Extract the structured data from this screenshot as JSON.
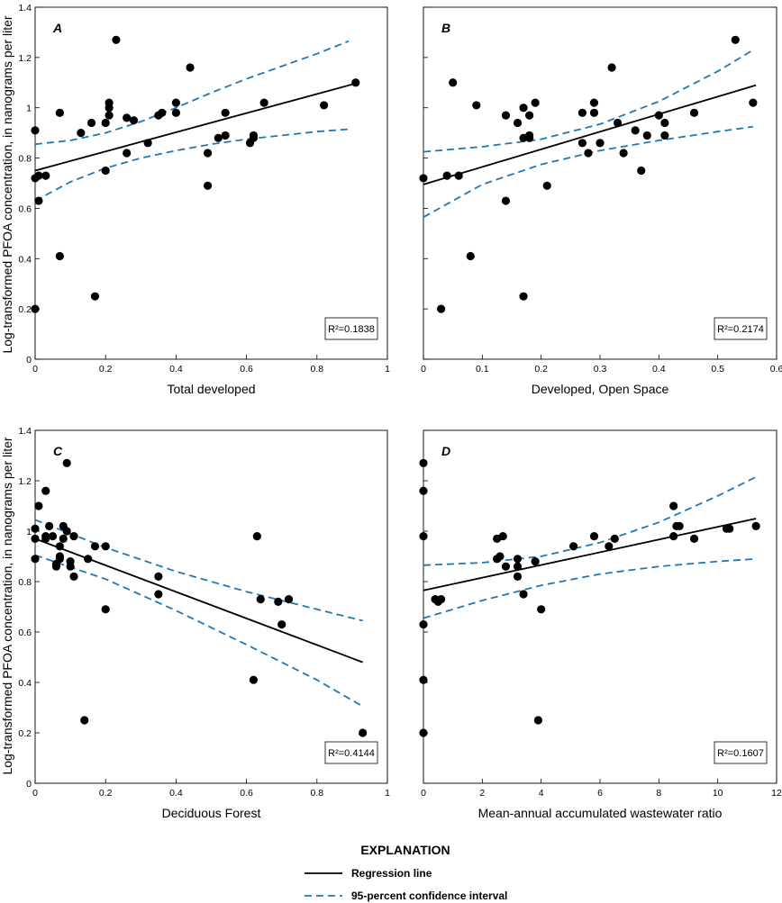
{
  "y_axis_label": "Log-transformed PFOA concentration, in nanograms per liter",
  "legend": {
    "title": "EXPLANATION",
    "regression_label": "Regression line",
    "ci_label": "95-percent confidence interval",
    "regression_color": "#000000",
    "ci_color": "#1f77b4"
  },
  "chart_data": [
    {
      "type": "scatter",
      "panel": "A",
      "xlabel": "Total developed",
      "xlim": [
        0,
        1
      ],
      "ylim": [
        0,
        1.4
      ],
      "xticks": [
        "0",
        "0.2",
        "0.4",
        "0.6",
        "0.8",
        "1"
      ],
      "yticks": [
        "0",
        "0.2",
        "0.4",
        "0.6",
        "0.8",
        "1",
        "1.2",
        "1.4"
      ],
      "r2_label": "R²=0.1838",
      "points": [
        [
          0.0,
          0.91
        ],
        [
          0.0,
          0.72
        ],
        [
          0.0,
          0.2
        ],
        [
          0.01,
          0.73
        ],
        [
          0.01,
          0.63
        ],
        [
          0.03,
          0.73
        ],
        [
          0.07,
          0.98
        ],
        [
          0.07,
          0.41
        ],
        [
          0.13,
          0.9
        ],
        [
          0.16,
          0.94
        ],
        [
          0.17,
          0.25
        ],
        [
          0.2,
          0.94
        ],
        [
          0.2,
          0.75
        ],
        [
          0.21,
          0.97
        ],
        [
          0.21,
          1.0
        ],
        [
          0.21,
          1.02
        ],
        [
          0.23,
          1.27
        ],
        [
          0.26,
          0.82
        ],
        [
          0.26,
          0.96
        ],
        [
          0.28,
          0.95
        ],
        [
          0.32,
          0.86
        ],
        [
          0.35,
          0.97
        ],
        [
          0.36,
          0.98
        ],
        [
          0.4,
          1.02
        ],
        [
          0.4,
          0.98
        ],
        [
          0.44,
          1.16
        ],
        [
          0.49,
          0.82
        ],
        [
          0.49,
          0.69
        ],
        [
          0.52,
          0.88
        ],
        [
          0.54,
          0.89
        ],
        [
          0.54,
          0.98
        ],
        [
          0.61,
          0.86
        ],
        [
          0.62,
          0.88
        ],
        [
          0.62,
          0.89
        ],
        [
          0.65,
          1.02
        ],
        [
          0.82,
          1.01
        ],
        [
          0.91,
          1.1
        ]
      ],
      "regression": [
        [
          0,
          0.75
        ],
        [
          0.905,
          1.095
        ]
      ],
      "ci_upper": [
        [
          0,
          0.855
        ],
        [
          0.1,
          0.87
        ],
        [
          0.2,
          0.9
        ],
        [
          0.3,
          0.945
        ],
        [
          0.4,
          1.0
        ],
        [
          0.5,
          1.06
        ],
        [
          0.6,
          1.115
        ],
        [
          0.7,
          1.165
        ],
        [
          0.8,
          1.215
        ],
        [
          0.89,
          1.265
        ]
      ],
      "ci_lower": [
        [
          0,
          0.63
        ],
        [
          0.1,
          0.705
        ],
        [
          0.2,
          0.76
        ],
        [
          0.3,
          0.8
        ],
        [
          0.4,
          0.83
        ],
        [
          0.5,
          0.855
        ],
        [
          0.6,
          0.875
        ],
        [
          0.7,
          0.89
        ],
        [
          0.8,
          0.905
        ],
        [
          0.89,
          0.915
        ]
      ]
    },
    {
      "type": "scatter",
      "panel": "B",
      "xlabel": "Developed, Open Space",
      "xlim": [
        0,
        0.6
      ],
      "ylim": [
        0,
        1.4
      ],
      "xticks": [
        "0",
        "0.1",
        "0.2",
        "0.3",
        "0.4",
        "0.5",
        "0.6"
      ],
      "yticks": [
        "0",
        "0.2",
        "0.4",
        "0.6",
        "0.8",
        "1",
        "1.2",
        "1.4"
      ],
      "r2_label": "R²=0.2174",
      "points": [
        [
          0.0,
          0.72
        ],
        [
          0.03,
          0.2
        ],
        [
          0.04,
          0.73
        ],
        [
          0.05,
          1.1
        ],
        [
          0.06,
          0.73
        ],
        [
          0.08,
          0.41
        ],
        [
          0.09,
          1.01
        ],
        [
          0.14,
          0.97
        ],
        [
          0.14,
          0.63
        ],
        [
          0.16,
          0.94
        ],
        [
          0.17,
          0.88
        ],
        [
          0.17,
          1.0
        ],
        [
          0.17,
          0.25
        ],
        [
          0.18,
          0.89
        ],
        [
          0.18,
          0.97
        ],
        [
          0.18,
          0.88
        ],
        [
          0.19,
          1.02
        ],
        [
          0.21,
          0.69
        ],
        [
          0.27,
          0.98
        ],
        [
          0.27,
          0.86
        ],
        [
          0.28,
          0.82
        ],
        [
          0.29,
          1.02
        ],
        [
          0.29,
          0.98
        ],
        [
          0.3,
          0.86
        ],
        [
          0.32,
          1.16
        ],
        [
          0.33,
          0.94
        ],
        [
          0.34,
          0.82
        ],
        [
          0.36,
          0.91
        ],
        [
          0.37,
          0.75
        ],
        [
          0.38,
          0.89
        ],
        [
          0.4,
          0.97
        ],
        [
          0.41,
          0.94
        ],
        [
          0.41,
          0.89
        ],
        [
          0.46,
          0.98
        ],
        [
          0.53,
          1.27
        ],
        [
          0.56,
          1.02
        ]
      ],
      "regression": [
        [
          0,
          0.695
        ],
        [
          0.565,
          1.09
        ]
      ],
      "ci_upper": [
        [
          0,
          0.825
        ],
        [
          0.1,
          0.845
        ],
        [
          0.2,
          0.875
        ],
        [
          0.3,
          0.935
        ],
        [
          0.4,
          1.025
        ],
        [
          0.5,
          1.145
        ],
        [
          0.56,
          1.23
        ]
      ],
      "ci_lower": [
        [
          0,
          0.565
        ],
        [
          0.1,
          0.695
        ],
        [
          0.2,
          0.775
        ],
        [
          0.3,
          0.83
        ],
        [
          0.4,
          0.87
        ],
        [
          0.5,
          0.905
        ],
        [
          0.56,
          0.925
        ]
      ]
    },
    {
      "type": "scatter",
      "panel": "C",
      "xlabel": "Deciduous Forest",
      "xlim": [
        0,
        1
      ],
      "ylim": [
        0,
        1.4
      ],
      "xticks": [
        "0",
        "0.2",
        "0.4",
        "0.6",
        "0.8",
        "1"
      ],
      "yticks": [
        "0",
        "0.2",
        "0.4",
        "0.6",
        "0.8",
        "1",
        "1.2",
        "1.4"
      ],
      "r2_label": "R²=0.4144",
      "points": [
        [
          0.0,
          1.01
        ],
        [
          0.0,
          0.97
        ],
        [
          0.0,
          0.89
        ],
        [
          0.01,
          1.1
        ],
        [
          0.03,
          1.16
        ],
        [
          0.03,
          0.97
        ],
        [
          0.03,
          0.98
        ],
        [
          0.04,
          1.02
        ],
        [
          0.05,
          0.98
        ],
        [
          0.06,
          0.86
        ],
        [
          0.06,
          0.87
        ],
        [
          0.07,
          0.89
        ],
        [
          0.07,
          0.94
        ],
        [
          0.07,
          0.9
        ],
        [
          0.08,
          1.02
        ],
        [
          0.08,
          0.97
        ],
        [
          0.09,
          1.27
        ],
        [
          0.09,
          1.0
        ],
        [
          0.1,
          0.88
        ],
        [
          0.1,
          0.86
        ],
        [
          0.11,
          0.98
        ],
        [
          0.11,
          0.82
        ],
        [
          0.14,
          0.25
        ],
        [
          0.15,
          0.89
        ],
        [
          0.17,
          0.94
        ],
        [
          0.2,
          0.94
        ],
        [
          0.2,
          0.69
        ],
        [
          0.35,
          0.82
        ],
        [
          0.35,
          0.75
        ],
        [
          0.62,
          0.41
        ],
        [
          0.63,
          0.98
        ],
        [
          0.64,
          0.73
        ],
        [
          0.69,
          0.72
        ],
        [
          0.7,
          0.63
        ],
        [
          0.72,
          0.73
        ],
        [
          0.93,
          0.2
        ]
      ],
      "regression": [
        [
          0,
          0.97
        ],
        [
          0.93,
          0.48
        ]
      ],
      "ci_upper": [
        [
          0,
          1.045
        ],
        [
          0.2,
          0.935
        ],
        [
          0.4,
          0.84
        ],
        [
          0.6,
          0.76
        ],
        [
          0.8,
          0.69
        ],
        [
          0.93,
          0.645
        ]
      ],
      "ci_lower": [
        [
          0,
          0.905
        ],
        [
          0.2,
          0.81
        ],
        [
          0.4,
          0.685
        ],
        [
          0.6,
          0.55
        ],
        [
          0.8,
          0.41
        ],
        [
          0.93,
          0.305
        ]
      ]
    },
    {
      "type": "scatter",
      "panel": "D",
      "xlabel": "Mean-annual accumulated wastewater ratio",
      "xlim": [
        0,
        12
      ],
      "ylim": [
        0,
        1.4
      ],
      "xticks": [
        "0",
        "2",
        "4",
        "6",
        "8",
        "10",
        "12"
      ],
      "yticks": [
        "0",
        "0.2",
        "0.4",
        "0.6",
        "0.8",
        "1",
        "1.2",
        "1.4"
      ],
      "r2_label": "R²=0.1607",
      "points": [
        [
          0.0,
          1.27
        ],
        [
          0.0,
          1.16
        ],
        [
          0.0,
          0.98
        ],
        [
          0.0,
          0.63
        ],
        [
          0.0,
          0.41
        ],
        [
          0.0,
          0.2
        ],
        [
          0.4,
          0.73
        ],
        [
          0.5,
          0.72
        ],
        [
          0.6,
          0.73
        ],
        [
          2.5,
          0.89
        ],
        [
          2.5,
          0.97
        ],
        [
          2.6,
          0.9
        ],
        [
          2.7,
          0.98
        ],
        [
          2.8,
          0.86
        ],
        [
          3.2,
          0.89
        ],
        [
          3.2,
          0.86
        ],
        [
          3.2,
          0.82
        ],
        [
          3.4,
          0.75
        ],
        [
          3.8,
          0.88
        ],
        [
          3.9,
          0.25
        ],
        [
          4.0,
          0.69
        ],
        [
          5.1,
          0.94
        ],
        [
          5.8,
          0.98
        ],
        [
          6.3,
          0.94
        ],
        [
          6.5,
          0.97
        ],
        [
          8.5,
          1.1
        ],
        [
          8.5,
          0.98
        ],
        [
          8.6,
          1.02
        ],
        [
          8.7,
          1.02
        ],
        [
          9.2,
          0.97
        ],
        [
          10.3,
          1.01
        ],
        [
          10.4,
          1.01
        ],
        [
          11.3,
          1.02
        ]
      ],
      "regression": [
        [
          0,
          0.765
        ],
        [
          11.3,
          1.05
        ]
      ],
      "ci_upper": [
        [
          0,
          0.865
        ],
        [
          2,
          0.875
        ],
        [
          4,
          0.9
        ],
        [
          6,
          0.955
        ],
        [
          8,
          1.035
        ],
        [
          10,
          1.14
        ],
        [
          11.3,
          1.215
        ]
      ],
      "ci_lower": [
        [
          0,
          0.655
        ],
        [
          2,
          0.725
        ],
        [
          4,
          0.785
        ],
        [
          6,
          0.83
        ],
        [
          8,
          0.86
        ],
        [
          10,
          0.88
        ],
        [
          11.3,
          0.89
        ]
      ]
    }
  ]
}
